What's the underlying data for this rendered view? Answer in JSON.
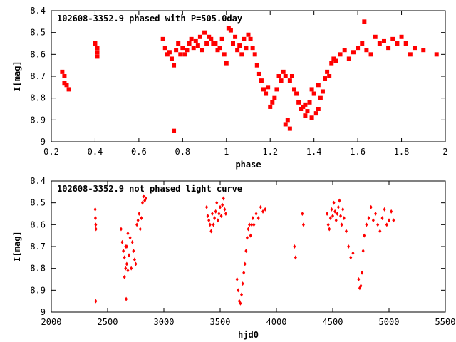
{
  "chart_data": [
    {
      "type": "scatter",
      "title": "102608-3352.9 phased with P=505.0day",
      "xlabel": "phase",
      "ylabel": "I[mag]",
      "xlim": [
        0.2,
        2.0
      ],
      "ylim": [
        9.0,
        8.4
      ],
      "y_inverted": true,
      "xticks": [
        "0.2",
        "0.4",
        "0.6",
        "0.8",
        "1",
        "1.2",
        "1.4",
        "1.6",
        "1.8",
        "2"
      ],
      "yticks": [
        "8.4",
        "8.5",
        "8.6",
        "8.7",
        "8.8",
        "8.9",
        "9"
      ],
      "marker": "filled-square",
      "color": "#ff0000",
      "grid": false,
      "series": [
        {
          "x": [
            0.25,
            0.26,
            0.26,
            0.27,
            0.28,
            0.4,
            0.41,
            0.41,
            0.41,
            0.71,
            0.72,
            0.73,
            0.74,
            0.75,
            0.76,
            0.77,
            0.78,
            0.79,
            0.8,
            0.81,
            0.82,
            0.83,
            0.84,
            0.85,
            0.86,
            0.87,
            0.88,
            0.89,
            0.9,
            0.91,
            0.92,
            0.93,
            0.94,
            0.95,
            0.96,
            0.97,
            0.98,
            0.99,
            1.0,
            1.01,
            1.02,
            1.03,
            1.04,
            1.05,
            1.06,
            1.07,
            1.08,
            1.09,
            1.1,
            1.11,
            1.12,
            1.13,
            1.14,
            1.15,
            1.16,
            1.17,
            1.18,
            1.19,
            1.2,
            1.21,
            1.22,
            1.23,
            1.24,
            1.25,
            1.26,
            1.27,
            1.28,
            1.29,
            1.3,
            1.31,
            1.32,
            1.33,
            1.34,
            1.35,
            1.36,
            1.37,
            1.38,
            1.39,
            1.4,
            1.41,
            1.42,
            1.43,
            1.44,
            1.45,
            1.46,
            1.47,
            1.48,
            1.49,
            1.5,
            1.52,
            1.54,
            1.56,
            1.58,
            1.6,
            1.62,
            1.64,
            1.66,
            1.68,
            1.7,
            1.72,
            1.74,
            1.76,
            1.78,
            1.8,
            1.82,
            1.84,
            1.86,
            1.9,
            1.96,
            0.76,
            1.29,
            1.27,
            1.36,
            1.39,
            1.42,
            1.63
          ],
          "y": [
            8.68,
            8.73,
            8.7,
            8.74,
            8.76,
            8.55,
            8.57,
            8.59,
            8.61,
            8.53,
            8.57,
            8.6,
            8.59,
            8.62,
            8.65,
            8.58,
            8.55,
            8.6,
            8.57,
            8.6,
            8.58,
            8.55,
            8.53,
            8.57,
            8.54,
            8.56,
            8.52,
            8.58,
            8.5,
            8.55,
            8.52,
            8.53,
            8.55,
            8.55,
            8.58,
            8.57,
            8.53,
            8.6,
            8.64,
            8.48,
            8.49,
            8.55,
            8.52,
            8.58,
            8.56,
            8.6,
            8.53,
            8.57,
            8.51,
            8.53,
            8.57,
            8.6,
            8.65,
            8.69,
            8.72,
            8.76,
            8.78,
            8.75,
            8.84,
            8.82,
            8.8,
            8.76,
            8.7,
            8.72,
            8.68,
            8.7,
            8.9,
            8.72,
            8.7,
            8.76,
            8.78,
            8.82,
            8.85,
            8.84,
            8.83,
            8.86,
            8.82,
            8.76,
            8.78,
            8.87,
            8.85,
            8.8,
            8.77,
            8.71,
            8.68,
            8.7,
            8.64,
            8.62,
            8.63,
            8.6,
            8.58,
            8.62,
            8.59,
            8.57,
            8.55,
            8.58,
            8.6,
            8.52,
            8.55,
            8.54,
            8.57,
            8.53,
            8.55,
            8.52,
            8.55,
            8.6,
            8.57,
            8.58,
            8.6,
            8.95,
            8.94,
            8.92,
            8.88,
            8.89,
            8.74,
            8.45
          ]
        }
      ]
    },
    {
      "type": "scatter",
      "title": "102608-3352.9 not phased light curve",
      "xlabel": "hjd0",
      "ylabel": "I[mag]",
      "xlim": [
        2000,
        5500
      ],
      "ylim": [
        9.0,
        8.4
      ],
      "y_inverted": true,
      "xticks": [
        "2000",
        "2500",
        "3000",
        "3500",
        "4000",
        "4500",
        "5000",
        "5500"
      ],
      "yticks": [
        "8.4",
        "8.5",
        "8.6",
        "8.7",
        "8.8",
        "8.9",
        "9"
      ],
      "marker": "filled-diamond",
      "color": "#ff0000",
      "grid": false,
      "series": [
        {
          "x": [
            2390,
            2392,
            2395,
            2397,
            2395,
            2620,
            2630,
            2640,
            2650,
            2660,
            2670,
            2680,
            2690,
            2700,
            2710,
            2720,
            2730,
            2740,
            2750,
            2650,
            2660,
            2670,
            2680,
            2760,
            2770,
            2780,
            2790,
            2800,
            2810,
            2820,
            2830,
            2840,
            2665,
            3380,
            3390,
            3400,
            3410,
            3420,
            3430,
            3440,
            3450,
            3460,
            3470,
            3480,
            3490,
            3500,
            3510,
            3520,
            3530,
            3540,
            3550,
            3650,
            3660,
            3670,
            3680,
            3690,
            3700,
            3710,
            3720,
            3730,
            3740,
            3750,
            3760,
            3770,
            3780,
            3790,
            3800,
            3820,
            3840,
            3860,
            3880,
            3900,
            4160,
            4170,
            4230,
            4240,
            4450,
            4460,
            4470,
            4480,
            4490,
            4500,
            4510,
            4520,
            4530,
            4540,
            4550,
            4560,
            4570,
            4580,
            4590,
            4600,
            4620,
            4640,
            4660,
            4680,
            4730,
            4740,
            4750,
            4760,
            4770,
            4780,
            4800,
            4820,
            4840,
            4860,
            4880,
            4900,
            4920,
            4940,
            4960,
            4980,
            5000,
            5020,
            5040
          ],
          "y": [
            8.53,
            8.57,
            8.6,
            8.62,
            8.95,
            8.62,
            8.68,
            8.72,
            8.75,
            8.7,
            8.78,
            8.81,
            8.74,
            8.66,
            8.8,
            8.68,
            8.72,
            8.76,
            8.78,
            8.84,
            8.8,
            8.7,
            8.64,
            8.6,
            8.58,
            8.55,
            8.62,
            8.57,
            8.5,
            8.47,
            8.49,
            8.48,
            8.94,
            8.52,
            8.56,
            8.58,
            8.6,
            8.63,
            8.55,
            8.6,
            8.57,
            8.54,
            8.5,
            8.58,
            8.55,
            8.52,
            8.56,
            8.51,
            8.48,
            8.53,
            8.55,
            8.85,
            8.9,
            8.95,
            8.96,
            8.92,
            8.87,
            8.82,
            8.78,
            8.72,
            8.66,
            8.62,
            8.6,
            8.65,
            8.6,
            8.57,
            8.6,
            8.55,
            8.57,
            8.52,
            8.54,
            8.53,
            8.7,
            8.75,
            8.55,
            8.6,
            8.55,
            8.6,
            8.62,
            8.57,
            8.53,
            8.56,
            8.5,
            8.54,
            8.58,
            8.55,
            8.52,
            8.49,
            8.56,
            8.6,
            8.53,
            8.57,
            8.63,
            8.7,
            8.75,
            8.73,
            8.85,
            8.89,
            8.88,
            8.82,
            8.72,
            8.65,
            8.6,
            8.57,
            8.52,
            8.58,
            8.55,
            8.6,
            8.63,
            8.57,
            8.53,
            8.6,
            8.58,
            8.54,
            8.58
          ]
        }
      ]
    }
  ]
}
